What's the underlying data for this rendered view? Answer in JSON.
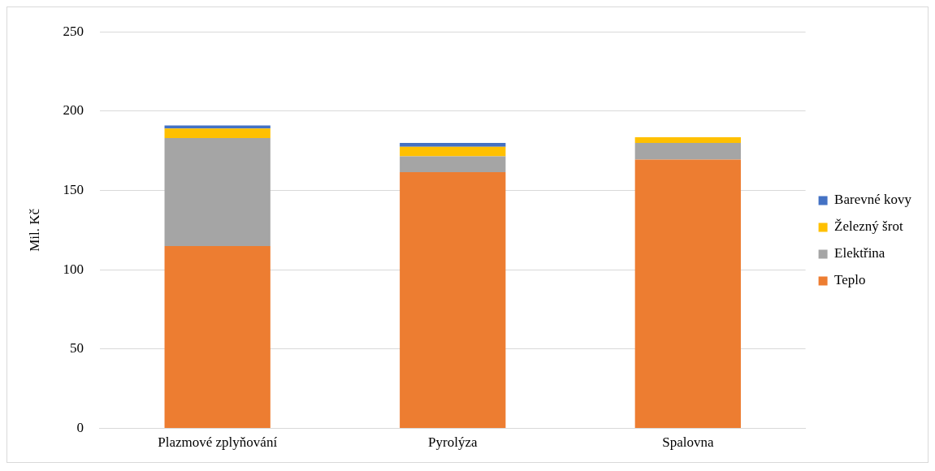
{
  "chart_data": {
    "type": "bar",
    "stacked": true,
    "ylabel": "Mil. Kč",
    "categories": [
      "Plazmové zplyňování",
      "Pyrolýza",
      "Spalovna"
    ],
    "series": [
      {
        "name": "Teplo",
        "color": "#ed7d31",
        "values": [
          115,
          161.5,
          169.5
        ]
      },
      {
        "name": "Elektřina",
        "color": "#a5a5a5",
        "values": [
          68,
          10,
          10.5
        ]
      },
      {
        "name": "Železný šrot",
        "color": "#ffc000",
        "values": [
          6,
          6,
          3.5
        ]
      },
      {
        "name": "Barevné kovy",
        "color": "#4472c4",
        "values": [
          2,
          2.5,
          0
        ]
      }
    ],
    "ylim": [
      0,
      250
    ],
    "yticks": [
      0,
      50,
      100,
      150,
      200,
      250
    ],
    "grid": "y",
    "legend": "right"
  }
}
